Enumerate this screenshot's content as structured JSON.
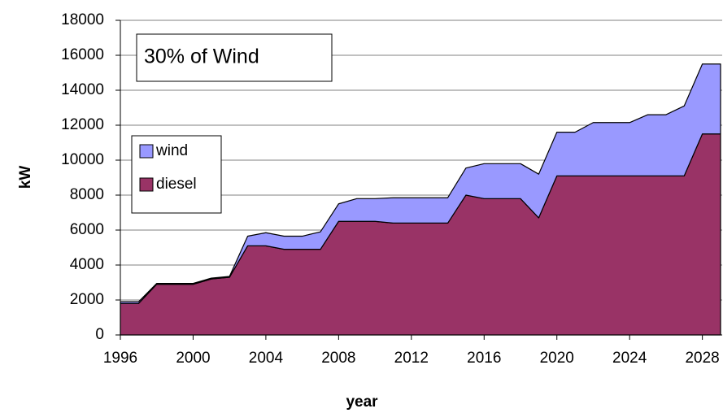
{
  "chart_data": {
    "type": "stacked_area",
    "annotation": "30% of Wind",
    "x_label": "year",
    "y_label": "kW",
    "x": [
      1996,
      1997,
      1998,
      1999,
      2000,
      2001,
      2002,
      2003,
      2004,
      2005,
      2006,
      2007,
      2008,
      2009,
      2010,
      2011,
      2012,
      2013,
      2014,
      2015,
      2016,
      2017,
      2018,
      2019,
      2020,
      2021,
      2022,
      2023,
      2024,
      2025,
      2026,
      2027,
      2028,
      2029
    ],
    "series": [
      {
        "name": "diesel",
        "color": "#993366",
        "values": [
          1800,
          1800,
          2900,
          2900,
          2900,
          3200,
          3300,
          5100,
          5100,
          4900,
          4900,
          4900,
          6500,
          6500,
          6500,
          6400,
          6400,
          6400,
          6400,
          8000,
          7800,
          7800,
          7800,
          6700,
          9100,
          9100,
          9100,
          9100,
          9100,
          9100,
          9100,
          9100,
          11500,
          11500
        ]
      },
      {
        "name": "wind",
        "color": "#9999ff",
        "values": [
          100,
          100,
          50,
          50,
          50,
          50,
          50,
          550,
          750,
          750,
          750,
          1000,
          1000,
          1300,
          1300,
          1450,
          1450,
          1450,
          1450,
          1550,
          2000,
          2000,
          2000,
          2500,
          2500,
          2500,
          3050,
          3050,
          3050,
          3500,
          3500,
          4000,
          4000,
          4000
        ]
      }
    ],
    "xlim": [
      1996,
      2029
    ],
    "xticks": [
      1996,
      2000,
      2004,
      2008,
      2012,
      2016,
      2020,
      2024,
      2028
    ],
    "ylim": [
      0,
      18000
    ],
    "yticks": [
      0,
      2000,
      4000,
      6000,
      8000,
      10000,
      12000,
      14000,
      16000,
      18000
    ],
    "grid": true
  }
}
